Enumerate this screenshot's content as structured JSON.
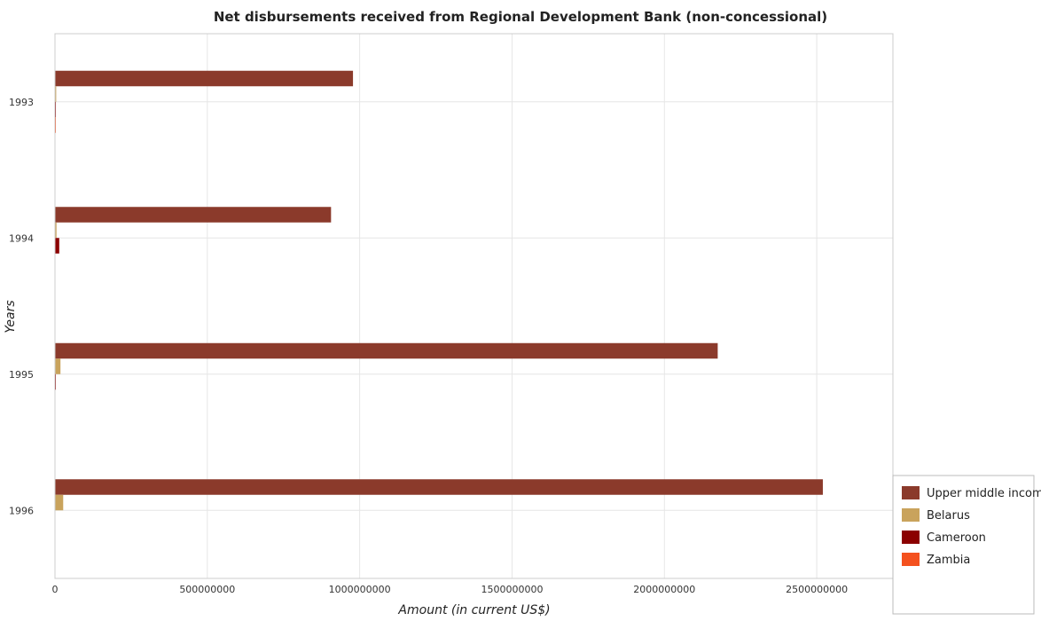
{
  "chart_data": {
    "type": "bar",
    "orientation": "horizontal",
    "title": "Net disbursements received from Regional Development Bank (non-concessional)",
    "xlabel": "Amount (in current US$)",
    "ylabel": "Years",
    "categories": [
      "1993",
      "1994",
      "1995",
      "1996"
    ],
    "series": [
      {
        "name": "Upper middle income",
        "color": "#8b3a2b",
        "values": [
          978000000,
          906000000,
          2175000000,
          2520000000
        ]
      },
      {
        "name": "Belarus",
        "color": "#c9a35c",
        "values": [
          4000000,
          5000000,
          18000000,
          27000000
        ]
      },
      {
        "name": "Cameroon",
        "color": "#8b0000",
        "values": [
          3000000,
          14000000,
          2000000,
          0
        ]
      },
      {
        "name": "Zambia",
        "color": "#f4511e",
        "values": [
          1500000,
          0,
          0,
          0
        ]
      }
    ],
    "xlim": [
      0,
      2750000000
    ],
    "xticks": [
      0,
      500000000,
      1000000000,
      1500000000,
      2000000000,
      2500000000
    ],
    "xtick_labels": [
      "0",
      "500000000",
      "1000000000",
      "1500000000",
      "2000000000",
      "2500000000"
    ],
    "grid": true,
    "legend_position": "bottom-right"
  }
}
